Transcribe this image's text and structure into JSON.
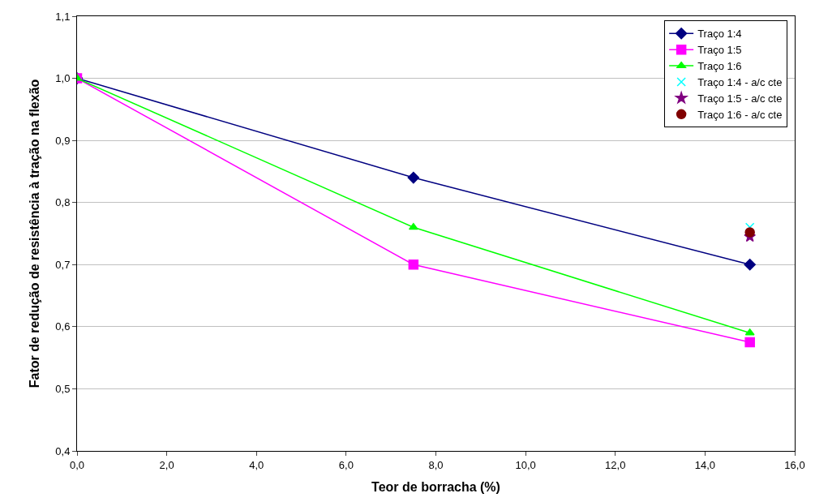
{
  "chart_data": {
    "type": "line",
    "xlabel": "Teor de borracha (%)",
    "ylabel": "Fator de redução de resistência à tração na flexão",
    "xlim": [
      0,
      16
    ],
    "xticks": [
      {
        "value": 0,
        "label": "0,0"
      },
      {
        "value": 2,
        "label": "2,0"
      },
      {
        "value": 4,
        "label": "4,0"
      },
      {
        "value": 6,
        "label": "6,0"
      },
      {
        "value": 8,
        "label": "8,0"
      },
      {
        "value": 10,
        "label": "10,0"
      },
      {
        "value": 12,
        "label": "12,0"
      },
      {
        "value": 14,
        "label": "14,0"
      },
      {
        "value": 16,
        "label": "16,0"
      }
    ],
    "ylim": [
      0.4,
      1.1
    ],
    "yticks": [
      {
        "value": 0.4,
        "label": "0,4"
      },
      {
        "value": 0.5,
        "label": "0,5"
      },
      {
        "value": 0.6,
        "label": "0,6"
      },
      {
        "value": 0.7,
        "label": "0,7"
      },
      {
        "value": 0.8,
        "label": "0,8"
      },
      {
        "value": 0.9,
        "label": "0,9"
      },
      {
        "value": 1.0,
        "label": "1,0"
      },
      {
        "value": 1.1,
        "label": "1,1"
      }
    ],
    "grid": "y",
    "legend": "top right",
    "line_style": "solid",
    "series": [
      {
        "name": "Traço 1:4",
        "color": "#000080",
        "marker": "diamond",
        "x": [
          0,
          7.5,
          15
        ],
        "values": [
          1.0,
          0.84,
          0.7
        ]
      },
      {
        "name": "Traço 1:5",
        "color": "#ff00ff",
        "marker": "square",
        "x": [
          0,
          7.5,
          15
        ],
        "values": [
          1.0,
          0.7,
          0.575
        ]
      },
      {
        "name": "Traço 1:6",
        "color": "#00ff00",
        "marker": "triangle",
        "x": [
          0,
          7.5,
          15
        ],
        "values": [
          1.0,
          0.76,
          0.59
        ]
      },
      {
        "name": "Traço 1:4 - a/c cte",
        "type": "scatter",
        "color": "#00ffff",
        "marker": "cross",
        "x": [
          15
        ],
        "values": [
          0.76
        ]
      },
      {
        "name": "Traço 1:5 - a/c cte",
        "type": "scatter",
        "color": "#800080",
        "marker": "star",
        "x": [
          15
        ],
        "values": [
          0.745
        ]
      },
      {
        "name": "Traço 1:6 - a/c cte",
        "type": "scatter",
        "color": "#800000",
        "marker": "circle",
        "x": [
          15
        ],
        "values": [
          0.752
        ]
      }
    ]
  }
}
